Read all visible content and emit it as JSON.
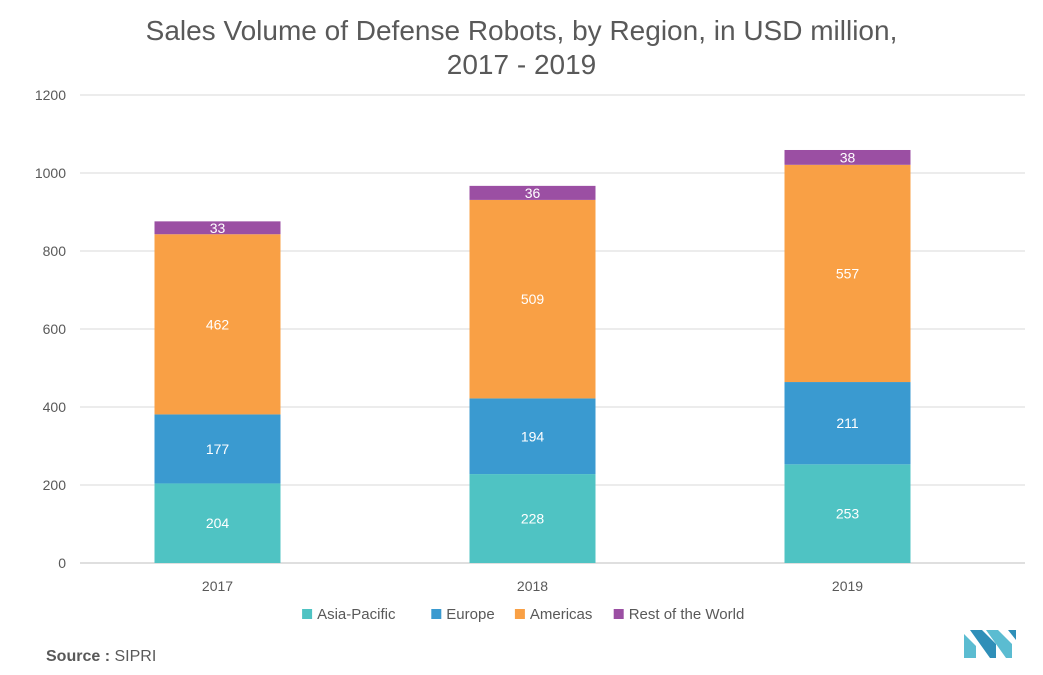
{
  "chart_data": {
    "type": "bar",
    "stacked": true,
    "title": "Sales Volume of Defense Robots, by Region, in USD million,",
    "subtitle": "2017 - 2019",
    "categories": [
      "2017",
      "2018",
      "2019"
    ],
    "series": [
      {
        "name": "Asia-Pacific",
        "values": [
          204,
          228,
          253
        ],
        "color": "#4fc3c3"
      },
      {
        "name": "Europe",
        "values": [
          177,
          194,
          211
        ],
        "color": "#3a9ad0"
      },
      {
        "name": "Americas",
        "values": [
          462,
          509,
          557
        ],
        "color": "#f9a045"
      },
      {
        "name": "Rest of the World",
        "values": [
          33,
          36,
          38
        ],
        "color": "#9b4fa3"
      }
    ],
    "ylim": [
      0,
      1200
    ],
    "yticks": [
      0,
      200,
      400,
      600,
      800,
      1000,
      1200
    ],
    "grid": true,
    "legend": "bottom"
  },
  "source": {
    "label": "Source :",
    "value": "SIPRI"
  },
  "logo_icon": "mordor-logo-icon"
}
